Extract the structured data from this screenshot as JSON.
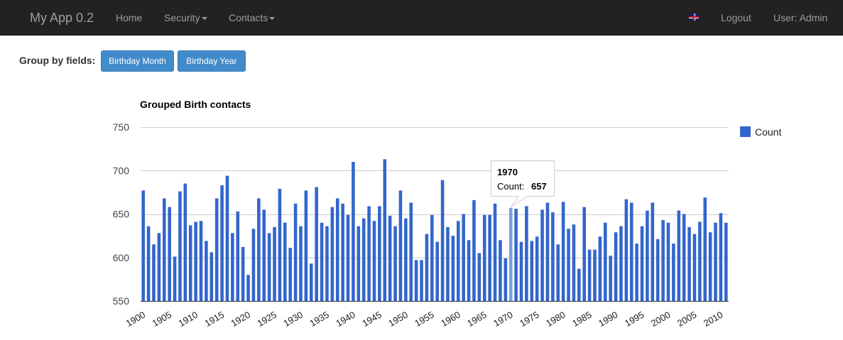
{
  "navbar": {
    "brand": "My App 0.2",
    "home": "Home",
    "security": "Security",
    "contacts": "Contacts",
    "logout": "Logout",
    "user": "User: Admin"
  },
  "group_by": {
    "label": "Group by fields:",
    "buttons": [
      "Birthday Month",
      "Birthday Year"
    ]
  },
  "colors": {
    "bar": "#3366cc",
    "highlight": "#7aa0dc",
    "navbar": "#222222",
    "button": "#428bca"
  },
  "tooltip": {
    "year": "1970",
    "label": "Count:",
    "value": "657"
  },
  "chart_data": {
    "type": "bar",
    "title": "Grouped Birth contacts",
    "xlabel": "",
    "ylabel": "",
    "ylim": [
      550,
      750
    ],
    "yticks": [
      550,
      600,
      650,
      700,
      750
    ],
    "grid": true,
    "legend_position": "top-right",
    "x_tick_labels": [
      "1900",
      "1905",
      "1910",
      "1915",
      "1920",
      "1925",
      "1930",
      "1935",
      "1940",
      "1945",
      "1950",
      "1955",
      "1960",
      "1965",
      "1970",
      "1975",
      "1980",
      "1985",
      "1990",
      "1995",
      "2000",
      "2005",
      "2010"
    ],
    "highlighted_category": "1970",
    "categories": [
      "1900",
      "1901",
      "1902",
      "1903",
      "1904",
      "1905",
      "1906",
      "1907",
      "1908",
      "1909",
      "1910",
      "1911",
      "1912",
      "1913",
      "1914",
      "1915",
      "1916",
      "1917",
      "1918",
      "1919",
      "1920",
      "1921",
      "1922",
      "1923",
      "1924",
      "1925",
      "1926",
      "1927",
      "1928",
      "1929",
      "1930",
      "1931",
      "1932",
      "1933",
      "1934",
      "1935",
      "1936",
      "1937",
      "1938",
      "1939",
      "1940",
      "1941",
      "1942",
      "1943",
      "1944",
      "1945",
      "1946",
      "1947",
      "1948",
      "1949",
      "1950",
      "1951",
      "1952",
      "1953",
      "1954",
      "1955",
      "1956",
      "1957",
      "1958",
      "1959",
      "1960",
      "1961",
      "1962",
      "1963",
      "1964",
      "1965",
      "1966",
      "1967",
      "1968",
      "1969",
      "1970",
      "1971",
      "1972",
      "1973",
      "1974",
      "1975",
      "1976",
      "1977",
      "1978",
      "1979",
      "1980",
      "1981",
      "1982",
      "1983",
      "1984",
      "1985",
      "1986",
      "1987",
      "1988",
      "1989",
      "1990",
      "1991",
      "1992",
      "1993",
      "1994",
      "1995",
      "1996",
      "1997",
      "1998",
      "1999",
      "2000",
      "2001",
      "2002",
      "2003",
      "2004",
      "2005",
      "2006",
      "2007",
      "2008",
      "2009",
      "2010",
      "2011"
    ],
    "series": [
      {
        "name": "Count",
        "values": [
          677,
          636,
          615,
          628,
          668,
          658,
          601,
          676,
          685,
          637,
          641,
          642,
          619,
          606,
          668,
          683,
          694,
          628,
          653,
          612,
          580,
          633,
          668,
          655,
          628,
          635,
          679,
          640,
          611,
          662,
          636,
          677,
          593,
          681,
          640,
          636,
          658,
          668,
          662,
          649,
          710,
          636,
          645,
          659,
          642,
          659,
          713,
          648,
          636,
          677,
          645,
          663,
          597,
          597,
          627,
          649,
          618,
          689,
          635,
          625,
          642,
          650,
          620,
          666,
          605,
          649,
          649,
          662,
          620,
          599,
          657,
          656,
          618,
          659,
          619,
          624,
          655,
          663,
          652,
          615,
          664,
          633,
          638,
          587,
          658,
          609,
          609,
          624,
          640,
          602,
          629,
          636,
          667,
          663,
          616,
          636,
          654,
          663,
          621,
          643,
          640,
          616,
          654,
          650,
          635,
          627,
          641,
          669,
          629,
          640,
          651,
          640
        ]
      }
    ]
  }
}
